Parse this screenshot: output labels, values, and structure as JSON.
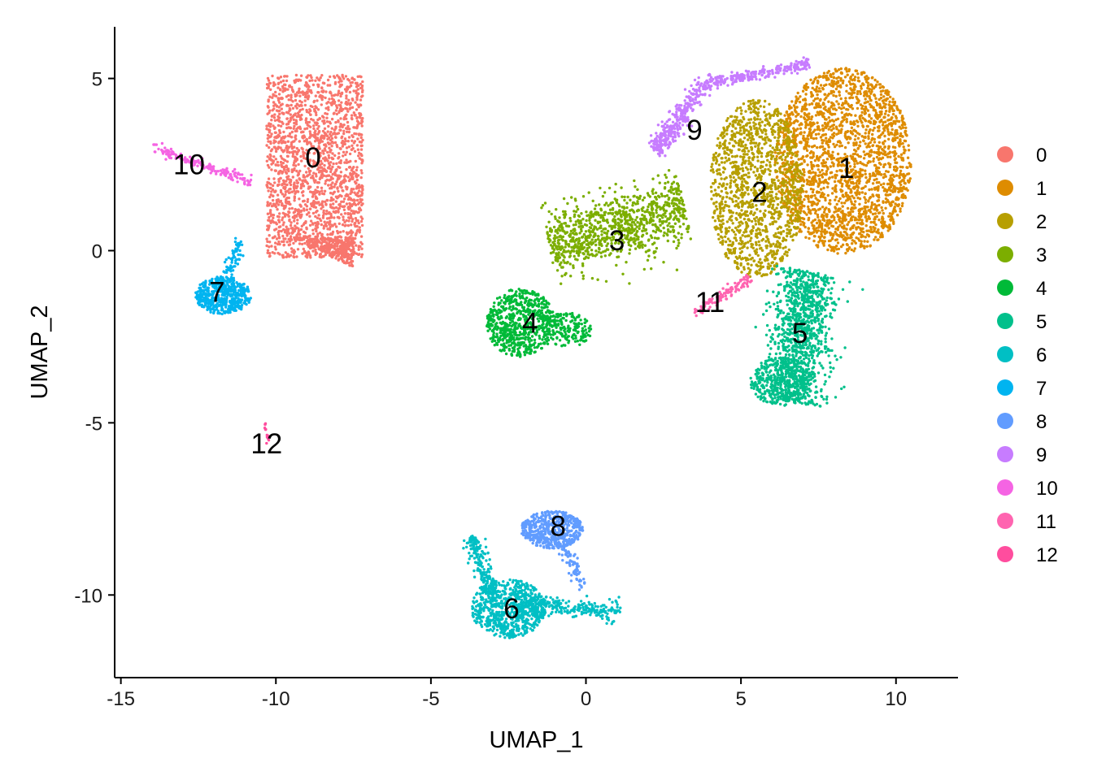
{
  "chart_data": {
    "type": "scatter",
    "title": "",
    "xlabel": "UMAP_1",
    "ylabel": "UMAP_2",
    "xlim": [
      -15.2,
      12.0
    ],
    "ylim": [
      -12.4,
      6.5
    ],
    "xticks": [
      -15,
      -10,
      -5,
      0,
      5,
      10
    ],
    "yticks": [
      5,
      0,
      -5,
      -10
    ],
    "x_tick_labels": [
      "-15",
      "-10",
      "-5",
      "0",
      "5",
      "10"
    ],
    "y_tick_labels": [
      "5",
      "0",
      "-5",
      "-10"
    ],
    "grid": false,
    "legend_position": "right",
    "series": [
      {
        "name": "0",
        "color": "#F8766D",
        "label_x": -8.8,
        "label_y": 2.7,
        "label_text": "0"
      },
      {
        "name": "1",
        "color": "#DE8C00",
        "label_x": 8.4,
        "label_y": 2.4,
        "label_text": "1"
      },
      {
        "name": "2",
        "color": "#B79F00",
        "label_x": 5.6,
        "label_y": 1.7,
        "label_text": "2"
      },
      {
        "name": "3",
        "color": "#7CAE00",
        "label_x": 1.0,
        "label_y": 0.3,
        "label_text": "3"
      },
      {
        "name": "4",
        "color": "#00BA38",
        "label_x": -1.8,
        "label_y": -2.1,
        "label_text": "4"
      },
      {
        "name": "5",
        "color": "#00C08B",
        "label_x": 6.9,
        "label_y": -2.4,
        "label_text": "5"
      },
      {
        "name": "6",
        "color": "#00BFC4",
        "label_x": -2.4,
        "label_y": -10.4,
        "label_text": "6"
      },
      {
        "name": "7",
        "color": "#00B4F0",
        "label_x": -11.9,
        "label_y": -1.2,
        "label_text": "7"
      },
      {
        "name": "8",
        "color": "#619CFF",
        "label_x": -0.9,
        "label_y": -8.0,
        "label_text": "8"
      },
      {
        "name": "9",
        "color": "#C77CFF",
        "label_x": 3.5,
        "label_y": 3.5,
        "label_text": "9"
      },
      {
        "name": "10",
        "color": "#F564E3",
        "label_x": -12.8,
        "label_y": 2.5,
        "label_text": "10"
      },
      {
        "name": "11",
        "color": "#FF64B0",
        "label_x": 4.0,
        "label_y": -1.5,
        "label_text": "11"
      },
      {
        "name": "12",
        "color": "#FF4D9E",
        "label_x": -10.3,
        "label_y": -5.6,
        "label_text": "12"
      }
    ]
  }
}
